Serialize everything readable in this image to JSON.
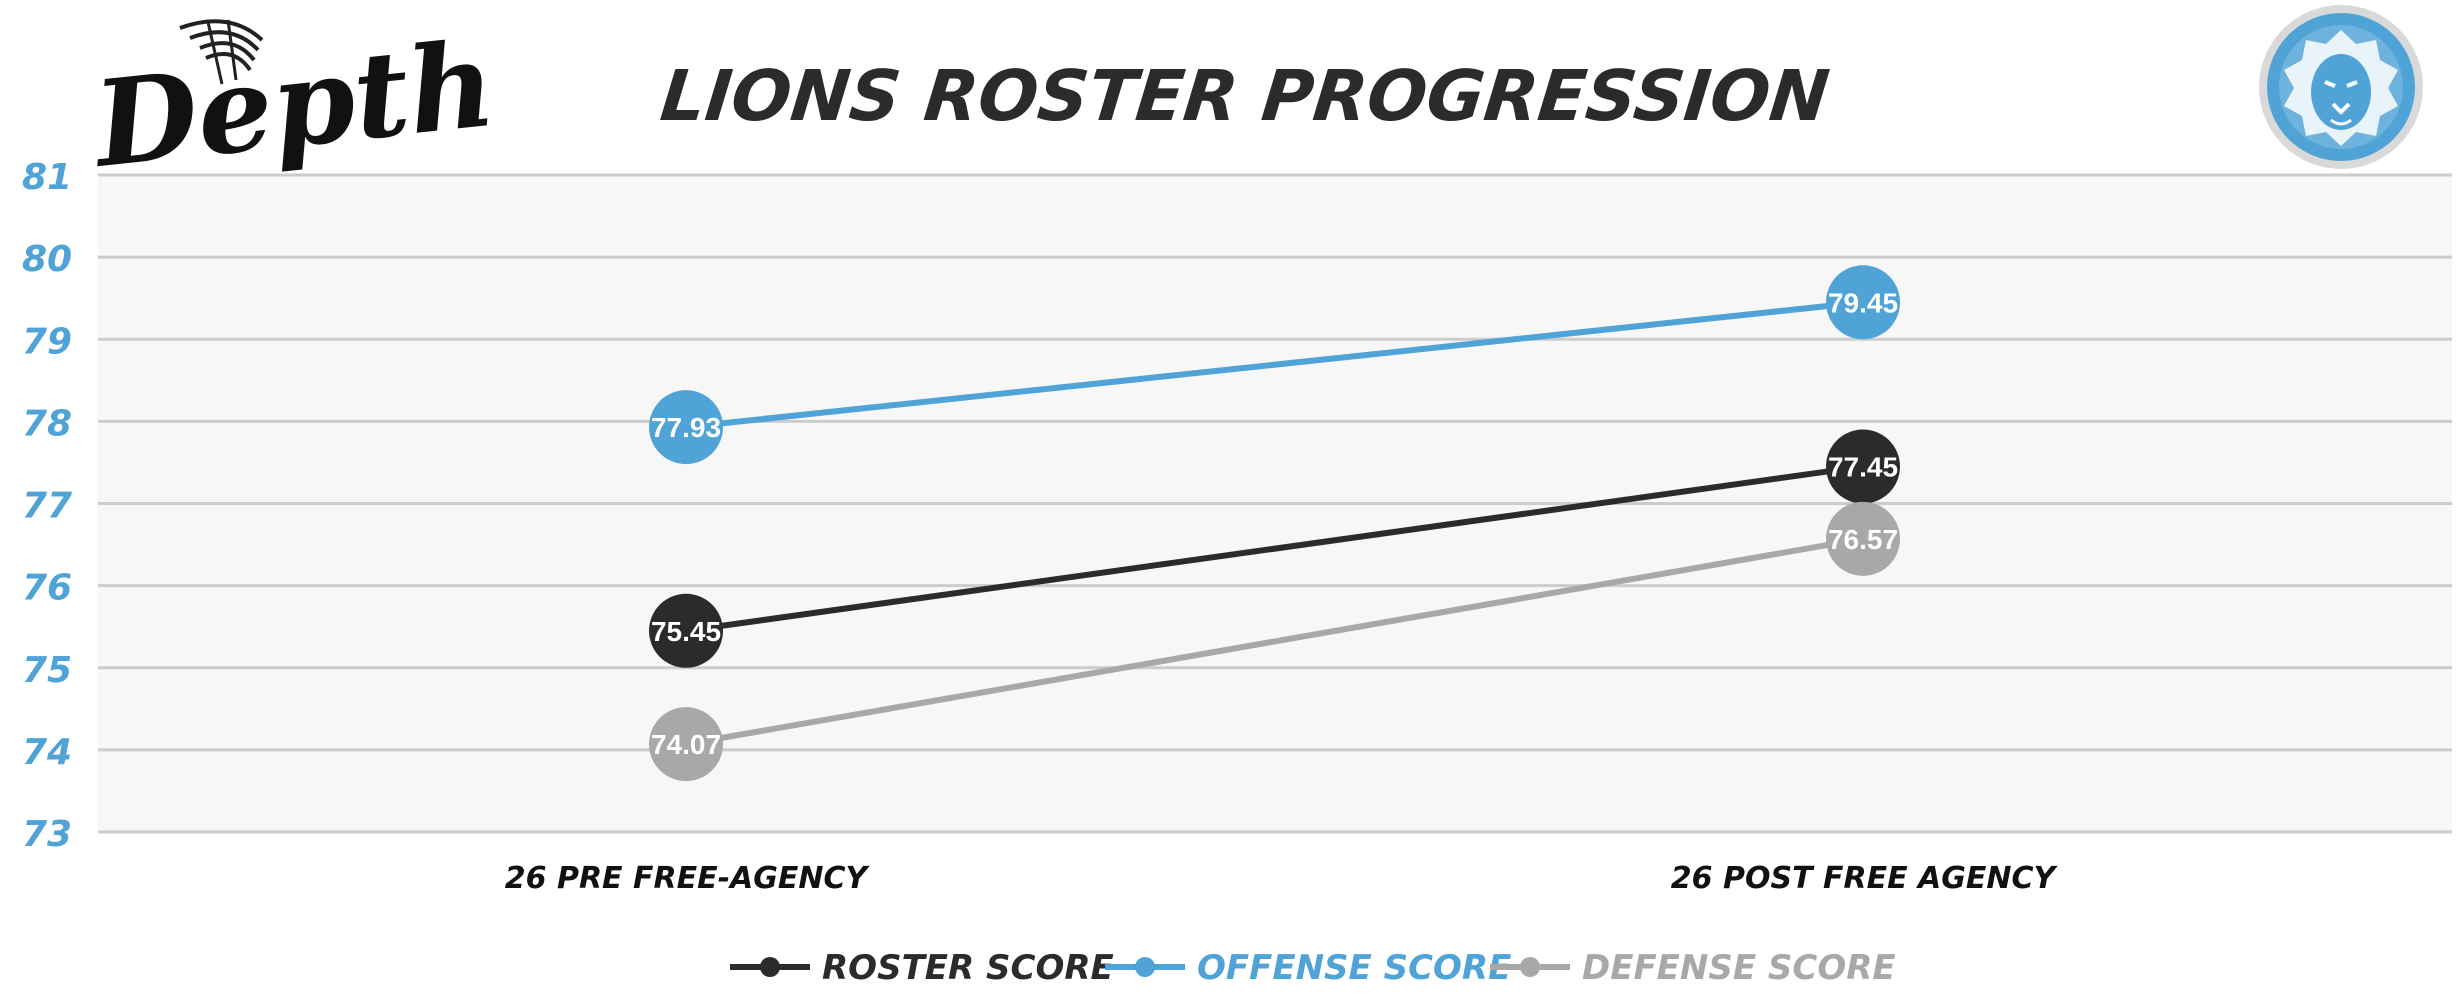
{
  "brand": {
    "logo_text": "Depth"
  },
  "colors": {
    "roster": "#2b2b2b",
    "offense": "#4fa3d6",
    "defense": "#a8a8a8",
    "ytick": "#4fa3d6",
    "grid": "#cccccc",
    "plot_bg": "#f7f7f7",
    "title": "#2b2b2b"
  },
  "chart_data": {
    "type": "line",
    "title": "LIONS ROSTER PROGRESSION",
    "categories": [
      "26 PRE FREE-AGENCY",
      "26 POST FREE AGENCY"
    ],
    "series": [
      {
        "name": "ROSTER SCORE",
        "color_key": "roster",
        "values": [
          75.45,
          77.45
        ],
        "labels": [
          "75.45",
          "77.45"
        ]
      },
      {
        "name": "OFFENSE SCORE",
        "color_key": "offense",
        "values": [
          77.93,
          79.45
        ],
        "labels": [
          "77.93",
          "79.45"
        ]
      },
      {
        "name": "DEFENSE SCORE",
        "color_key": "defense",
        "values": [
          74.07,
          76.57
        ],
        "labels": [
          "74.07",
          "76.57"
        ]
      }
    ],
    "ylim": [
      73,
      81
    ],
    "yticks": [
      "73",
      "74",
      "75",
      "76",
      "77",
      "78",
      "79",
      "80",
      "81"
    ],
    "grid": true,
    "legend": "bottom",
    "xlabel": "",
    "ylabel": ""
  }
}
